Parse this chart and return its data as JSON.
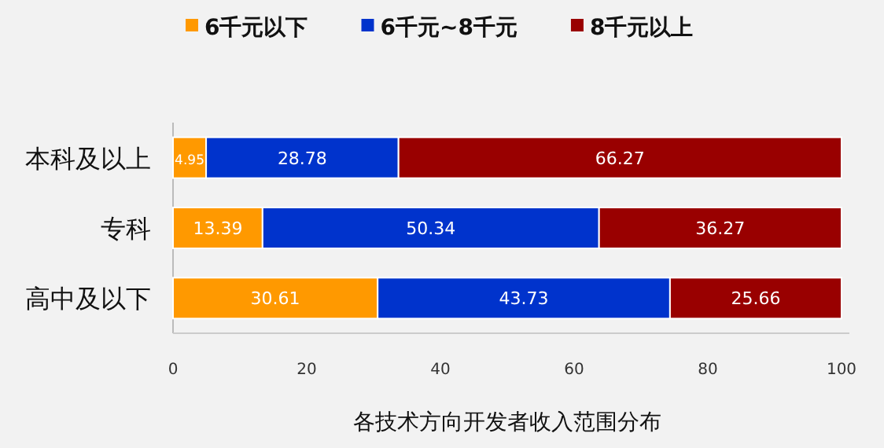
{
  "chart_data": {
    "type": "bar",
    "orientation": "horizontal",
    "stacked": true,
    "xlabel": "各技术方向开发者收入范围分布",
    "categories": [
      "本科及以上",
      "专科",
      "高中及以下"
    ],
    "series": [
      {
        "name": "6千元以下",
        "color": "#ff9900",
        "values": [
          4.95,
          13.39,
          30.61
        ]
      },
      {
        "name": "6千元~8千元",
        "color": "#0033cc",
        "values": [
          28.78,
          50.34,
          43.73
        ]
      },
      {
        "name": "8千元以上",
        "color": "#990000",
        "values": [
          66.27,
          36.27,
          25.66
        ]
      }
    ],
    "xlim": [
      0,
      100
    ],
    "xticks": [
      0,
      20,
      40,
      60,
      80,
      100
    ],
    "data_labels": true,
    "grid": false,
    "legend": "top"
  }
}
